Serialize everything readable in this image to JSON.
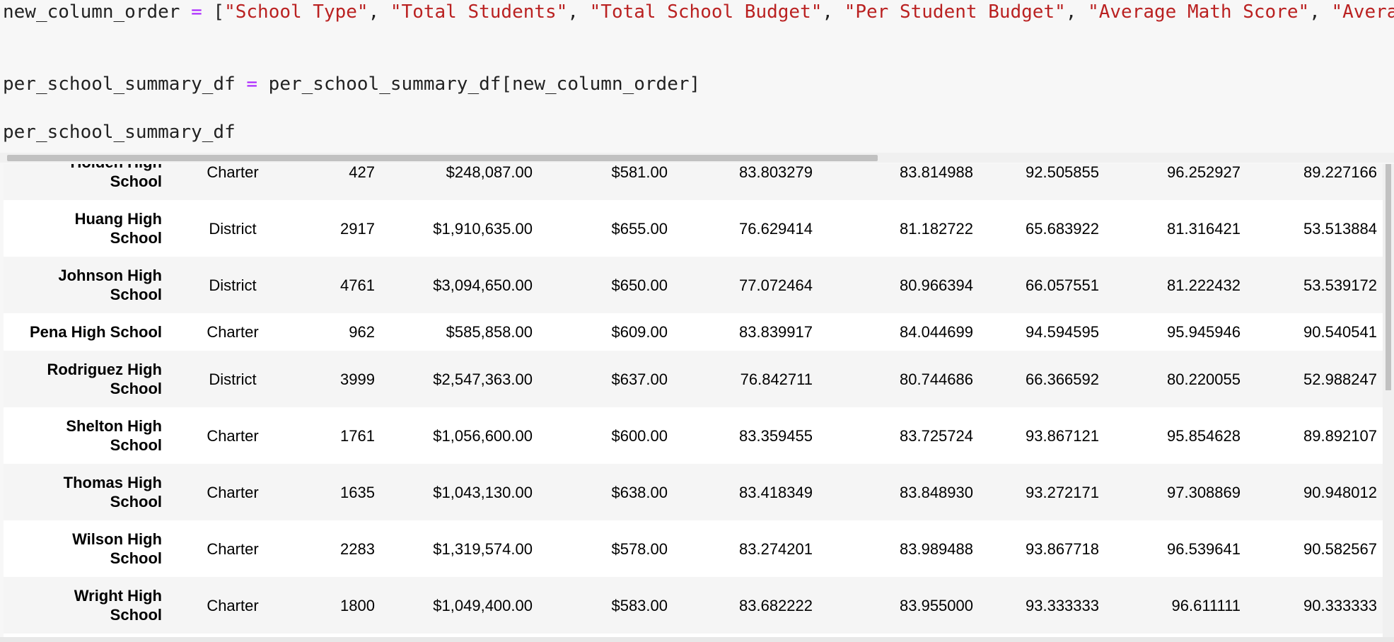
{
  "code": {
    "lines": [
      [
        "new_column_order ",
        "=",
        " [",
        "\"School Type\"",
        ", ",
        "\"Total Students\"",
        ", ",
        "\"Total School Budget\"",
        ", ",
        "\"Per Student Budget\"",
        ", ",
        "\"Average Math Score\"",
        ", ",
        "\"Average"
      ],
      [
        "per_school_summary_df ",
        "=",
        " per_school_summary_df[new_column_order]"
      ],
      [
        "per_school_summary_df"
      ]
    ]
  },
  "table": {
    "rows": [
      {
        "index": "Holden High School",
        "cells": [
          "Charter",
          "427",
          "$248,087.00",
          "$581.00",
          "83.803279",
          "83.814988",
          "92.505855",
          "96.252927",
          "89.227166"
        ]
      },
      {
        "index": "Huang High School",
        "cells": [
          "District",
          "2917",
          "$1,910,635.00",
          "$655.00",
          "76.629414",
          "81.182722",
          "65.683922",
          "81.316421",
          "53.513884"
        ]
      },
      {
        "index": "Johnson High School",
        "cells": [
          "District",
          "4761",
          "$3,094,650.00",
          "$650.00",
          "77.072464",
          "80.966394",
          "66.057551",
          "81.222432",
          "53.539172"
        ]
      },
      {
        "index": "Pena High School",
        "cells": [
          "Charter",
          "962",
          "$585,858.00",
          "$609.00",
          "83.839917",
          "84.044699",
          "94.594595",
          "95.945946",
          "90.540541"
        ]
      },
      {
        "index": "Rodriguez High School",
        "cells": [
          "District",
          "3999",
          "$2,547,363.00",
          "$637.00",
          "76.842711",
          "80.744686",
          "66.366592",
          "80.220055",
          "52.988247"
        ]
      },
      {
        "index": "Shelton High School",
        "cells": [
          "Charter",
          "1761",
          "$1,056,600.00",
          "$600.00",
          "83.359455",
          "83.725724",
          "93.867121",
          "95.854628",
          "89.892107"
        ]
      },
      {
        "index": "Thomas High School",
        "cells": [
          "Charter",
          "1635",
          "$1,043,130.00",
          "$638.00",
          "83.418349",
          "83.848930",
          "93.272171",
          "97.308869",
          "90.948012"
        ]
      },
      {
        "index": "Wilson High School",
        "cells": [
          "Charter",
          "2283",
          "$1,319,574.00",
          "$578.00",
          "83.274201",
          "83.989488",
          "93.867718",
          "96.539641",
          "90.582567"
        ]
      },
      {
        "index": "Wright High School",
        "cells": [
          "Charter",
          "1800",
          "$1,049,400.00",
          "$583.00",
          "83.682222",
          "83.955000",
          "93.333333",
          "96.611111",
          "90.333333"
        ]
      }
    ]
  }
}
